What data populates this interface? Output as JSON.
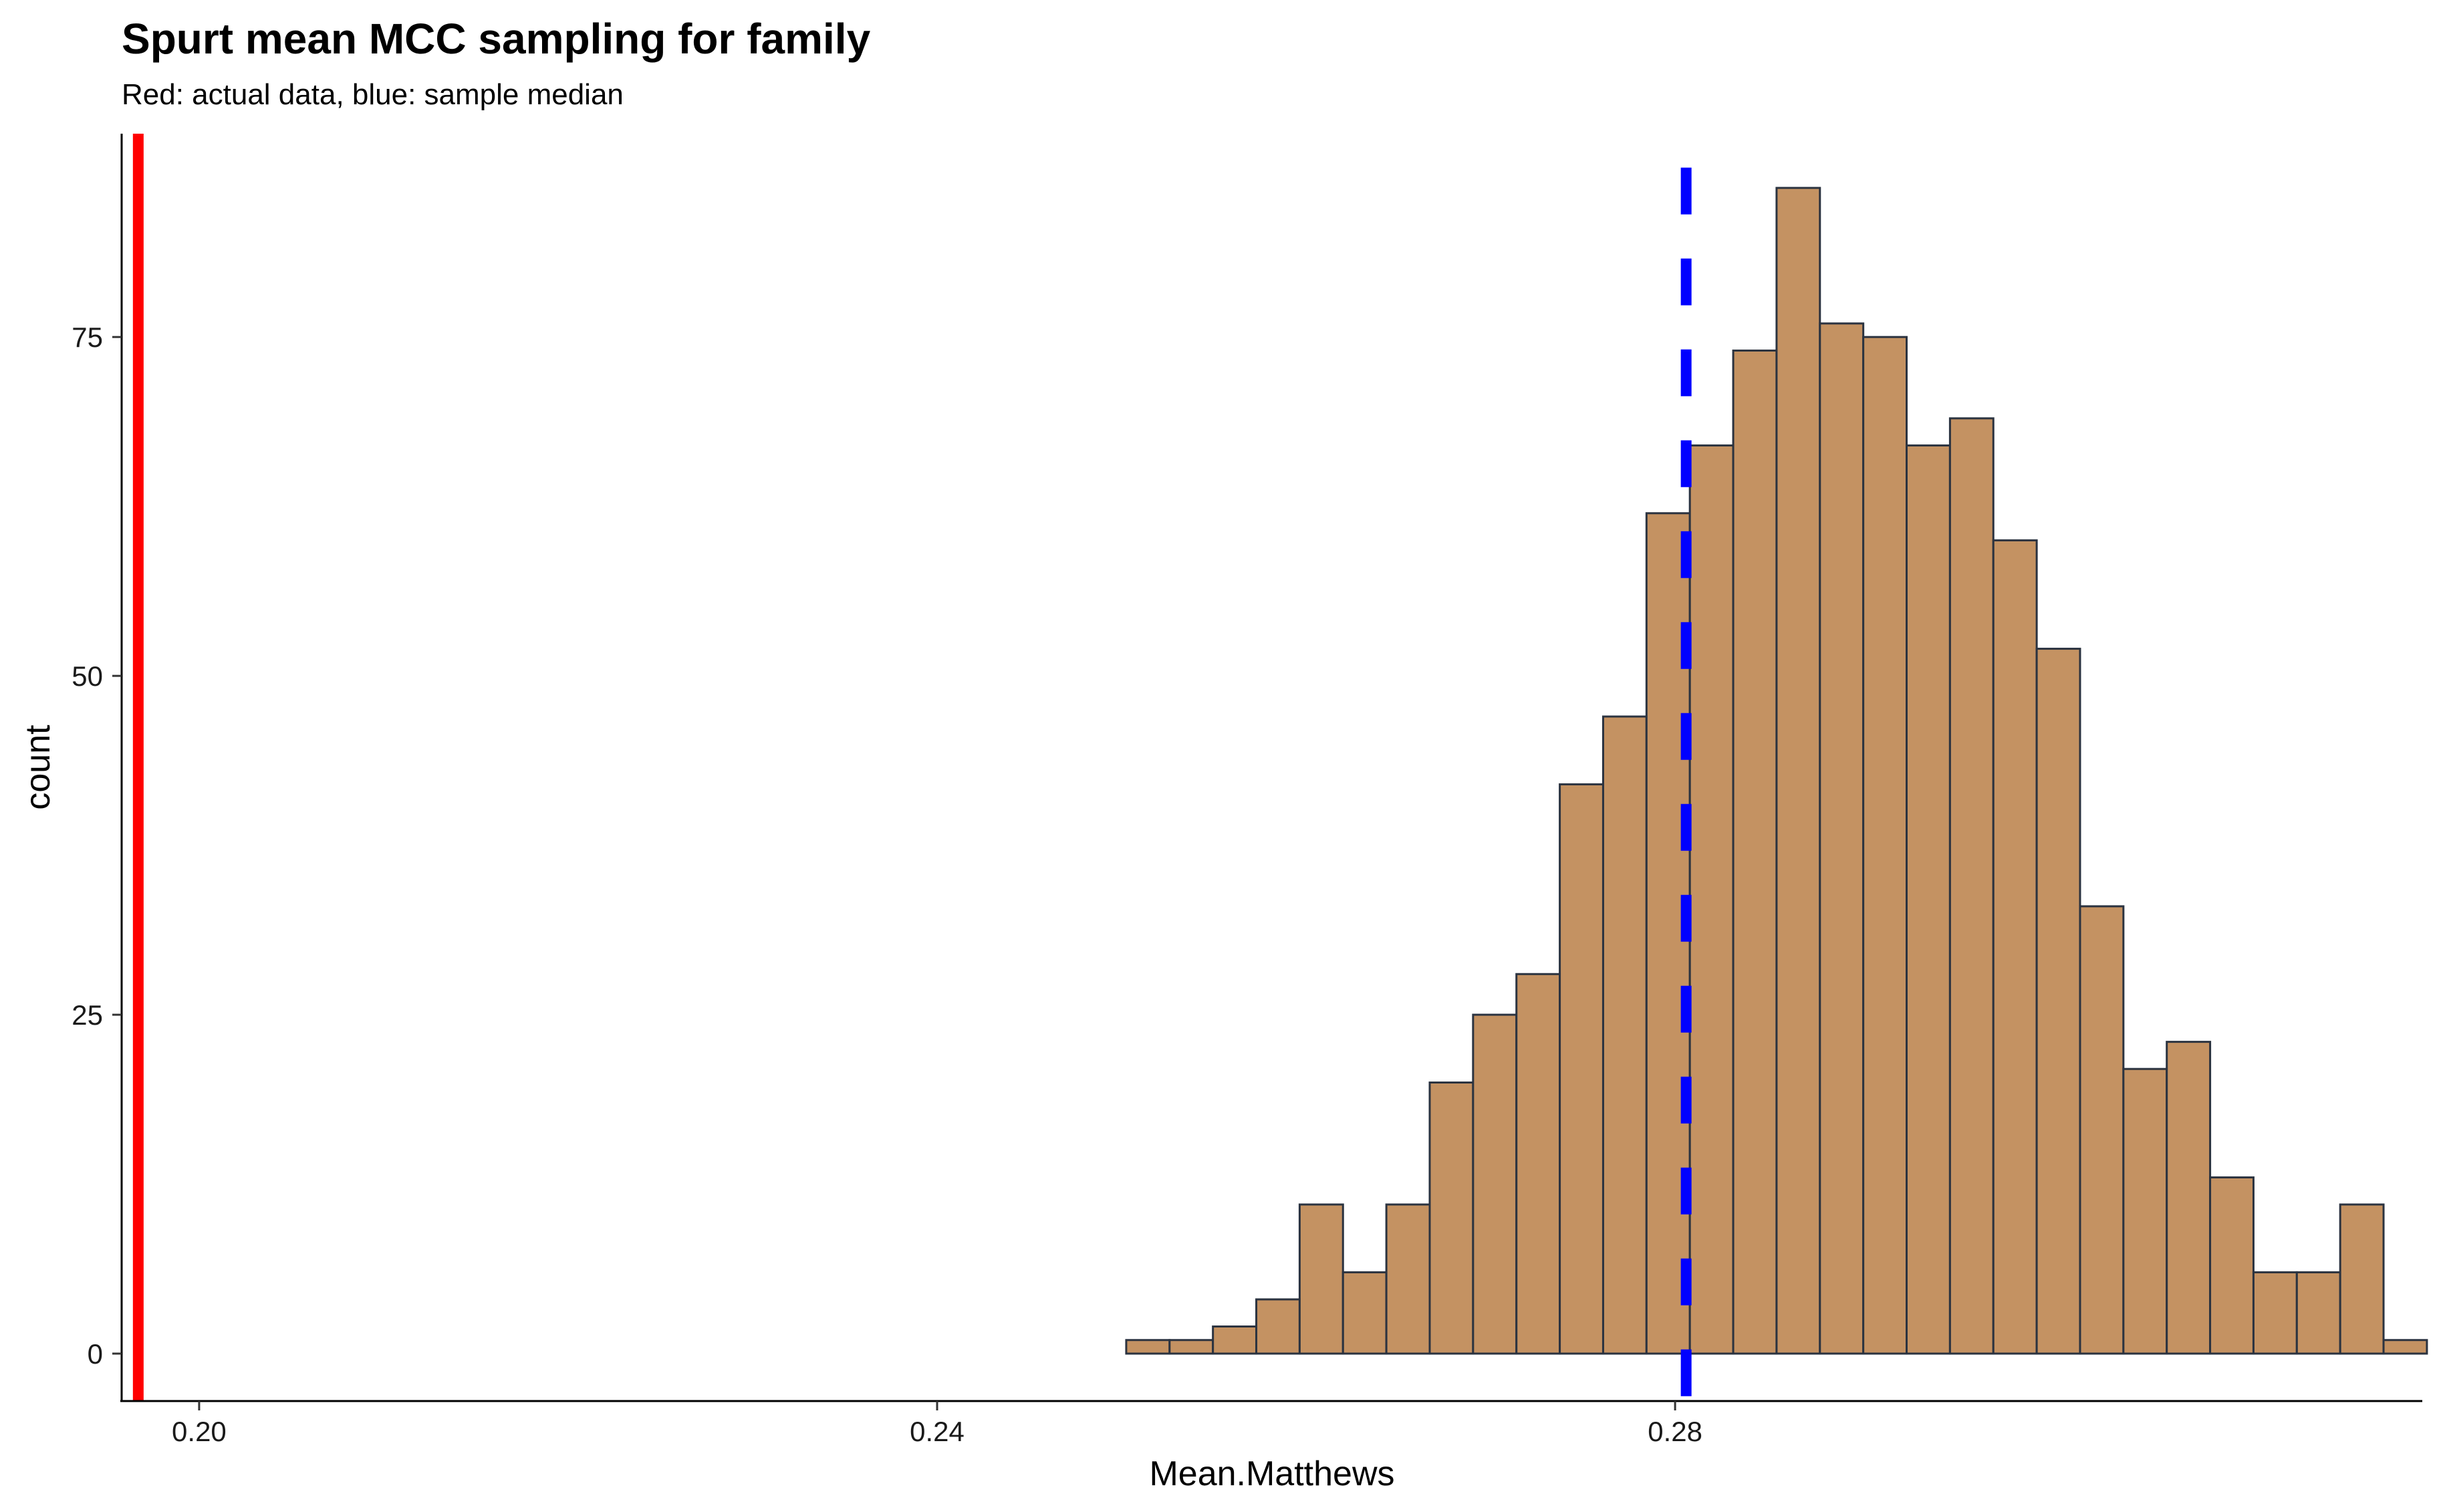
{
  "chart_data": {
    "type": "bar",
    "title": "Spurt mean MCC sampling for family",
    "subtitle": "Red: actual data, blue: sample median",
    "xlabel": "Mean.Matthews",
    "ylabel": "count",
    "xlim": [
      0.1958,
      0.3205
    ],
    "ylim": [
      -3.5,
      90
    ],
    "x_ticks": [
      0.2,
      0.24,
      0.28
    ],
    "x_tick_labels": [
      "0.20",
      "0.24",
      "0.28"
    ],
    "y_ticks": [
      0,
      25,
      50,
      75
    ],
    "y_tick_labels": [
      "0",
      "25",
      "50",
      "75"
    ],
    "grid": false,
    "bin_width": 0.00235,
    "bins_start": 0.1962,
    "counts": [
      0,
      0,
      0,
      0,
      0,
      0,
      0,
      0,
      0,
      0,
      0,
      0,
      0,
      0,
      0,
      0,
      0,
      0,
      0,
      0,
      0,
      0,
      0,
      1,
      1,
      2,
      4,
      11,
      6,
      11,
      20,
      25,
      28,
      42,
      47,
      62,
      67,
      74,
      86,
      76,
      75,
      67,
      69,
      60,
      52,
      33,
      21,
      23,
      13,
      6,
      6,
      11,
      1
    ],
    "bar_fill": "#c49262",
    "bar_stroke": "#2b3340",
    "actual_value": 0.1967,
    "actual_color": "#ff0000",
    "median_value": 0.2806,
    "median_color": "#0000ff"
  }
}
